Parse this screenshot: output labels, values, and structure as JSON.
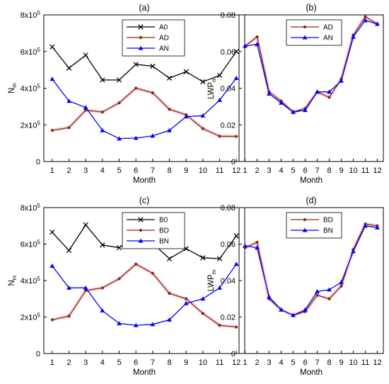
{
  "chart_data": [
    {
      "type": "line",
      "panel_label": "(a)",
      "xlabel": "Month",
      "ylabel": "N",
      "ylabel_sub": "m",
      "x": [
        1,
        2,
        3,
        4,
        5,
        6,
        7,
        8,
        9,
        10,
        11,
        12
      ],
      "xticks": [
        "1",
        "2",
        "3",
        "4",
        "5",
        "6",
        "7",
        "8",
        "9",
        "10",
        "11",
        "12"
      ],
      "ylim": [
        0,
        800000
      ],
      "yticks": [
        {
          "value": 0,
          "base": "0",
          "exp": ""
        },
        {
          "value": 200000,
          "base": "2x10",
          "exp": "5"
        },
        {
          "value": 400000,
          "base": "4x10",
          "exp": "5"
        },
        {
          "value": 600000,
          "base": "6x10",
          "exp": "5"
        },
        {
          "value": 800000,
          "base": "8x10",
          "exp": "5"
        }
      ],
      "legend_position": "top-right",
      "series": [
        {
          "name": "A0",
          "color": "#000000",
          "marker": "x",
          "values": [
            625000,
            510000,
            580000,
            445000,
            445000,
            530000,
            520000,
            455000,
            490000,
            435000,
            470000,
            600000
          ]
        },
        {
          "name": "AD",
          "color": "#8b2a10",
          "marker": "dot",
          "values": [
            170000,
            185000,
            280000,
            270000,
            320000,
            400000,
            375000,
            285000,
            255000,
            180000,
            138000,
            137000
          ]
        },
        {
          "name": "AN",
          "color": "#0000ff",
          "marker": "triangle",
          "values": [
            450000,
            330000,
            295000,
            170000,
            125000,
            128000,
            140000,
            170000,
            245000,
            250000,
            335000,
            455000
          ]
        }
      ]
    },
    {
      "type": "line",
      "panel_label": "(b)",
      "xlabel": "Month",
      "ylabel": "LWP",
      "ylabel_sub": "m",
      "x": [
        1,
        2,
        3,
        4,
        5,
        6,
        7,
        8,
        9,
        10,
        11,
        12
      ],
      "xticks": [
        "1",
        "2",
        "3",
        "4",
        "5",
        "6",
        "7",
        "8",
        "9",
        "10",
        "11",
        "12"
      ],
      "ylim": [
        0,
        0.08
      ],
      "yticks": [
        {
          "value": 0,
          "base": "0",
          "exp": ""
        },
        {
          "value": 0.02,
          "base": "0.02",
          "exp": ""
        },
        {
          "value": 0.04,
          "base": "0.04",
          "exp": ""
        },
        {
          "value": 0.06,
          "base": "0.06",
          "exp": ""
        },
        {
          "value": 0.08,
          "base": "0.08",
          "exp": ""
        }
      ],
      "legend_position": "top-right",
      "series": [
        {
          "name": "AD",
          "color": "#8b2a10",
          "marker": "dot",
          "values": [
            0.063,
            0.068,
            0.038,
            0.033,
            0.027,
            0.029,
            0.038,
            0.035,
            0.045,
            0.069,
            0.079,
            0.075
          ]
        },
        {
          "name": "AN",
          "color": "#0000ff",
          "marker": "triangle",
          "values": [
            0.063,
            0.064,
            0.037,
            0.032,
            0.027,
            0.028,
            0.038,
            0.038,
            0.044,
            0.068,
            0.077,
            0.075
          ]
        }
      ]
    },
    {
      "type": "line",
      "panel_label": "(c)",
      "xlabel": "Month",
      "ylabel": "N",
      "ylabel_sub": "m",
      "x": [
        1,
        2,
        3,
        4,
        5,
        6,
        7,
        8,
        9,
        10,
        11,
        12
      ],
      "xticks": [
        "1",
        "2",
        "3",
        "4",
        "5",
        "6",
        "7",
        "8",
        "9",
        "10",
        "11",
        "12"
      ],
      "ylim": [
        0,
        800000
      ],
      "yticks": [
        {
          "value": 0,
          "base": "0",
          "exp": ""
        },
        {
          "value": 200000,
          "base": "2x10",
          "exp": "5"
        },
        {
          "value": 400000,
          "base": "4x10",
          "exp": "5"
        },
        {
          "value": 600000,
          "base": "6x10",
          "exp": "5"
        },
        {
          "value": 800000,
          "base": "8x10",
          "exp": "5"
        }
      ],
      "legend_position": "top-right",
      "series": [
        {
          "name": "B0",
          "color": "#000000",
          "marker": "x",
          "values": [
            665000,
            565000,
            705000,
            595000,
            580000,
            650000,
            605000,
            520000,
            575000,
            525000,
            520000,
            645000
          ]
        },
        {
          "name": "BD",
          "color": "#8b2a10",
          "marker": "dot",
          "values": [
            185000,
            205000,
            345000,
            360000,
            410000,
            490000,
            440000,
            330000,
            300000,
            220000,
            155000,
            145000
          ]
        },
        {
          "name": "BN",
          "color": "#0000ff",
          "marker": "triangle",
          "values": [
            480000,
            360000,
            360000,
            235000,
            165000,
            155000,
            160000,
            185000,
            275000,
            300000,
            360000,
            490000
          ]
        }
      ]
    },
    {
      "type": "line",
      "panel_label": "(d)",
      "xlabel": "Month",
      "ylabel": "LWP",
      "ylabel_sub": "m",
      "x": [
        1,
        2,
        3,
        4,
        5,
        6,
        7,
        8,
        9,
        10,
        11,
        12
      ],
      "xticks": [
        "1",
        "2",
        "3",
        "4",
        "5",
        "6",
        "7",
        "8",
        "9",
        "10",
        "11",
        "12"
      ],
      "ylim": [
        0,
        0.08
      ],
      "yticks": [
        {
          "value": 0,
          "base": "0",
          "exp": ""
        },
        {
          "value": 0.02,
          "base": "0.02",
          "exp": ""
        },
        {
          "value": 0.04,
          "base": "0.04",
          "exp": ""
        },
        {
          "value": 0.06,
          "base": "0.06",
          "exp": ""
        },
        {
          "value": 0.08,
          "base": "0.08",
          "exp": ""
        }
      ],
      "legend_position": "top-right",
      "series": [
        {
          "name": "BD",
          "color": "#8b2a10",
          "marker": "dot",
          "values": [
            0.058,
            0.061,
            0.03,
            0.024,
            0.021,
            0.023,
            0.032,
            0.03,
            0.037,
            0.057,
            0.071,
            0.07
          ]
        },
        {
          "name": "BN",
          "color": "#0000ff",
          "marker": "triangle",
          "values": [
            0.059,
            0.058,
            0.031,
            0.024,
            0.021,
            0.024,
            0.034,
            0.035,
            0.039,
            0.056,
            0.07,
            0.069
          ]
        }
      ]
    }
  ]
}
